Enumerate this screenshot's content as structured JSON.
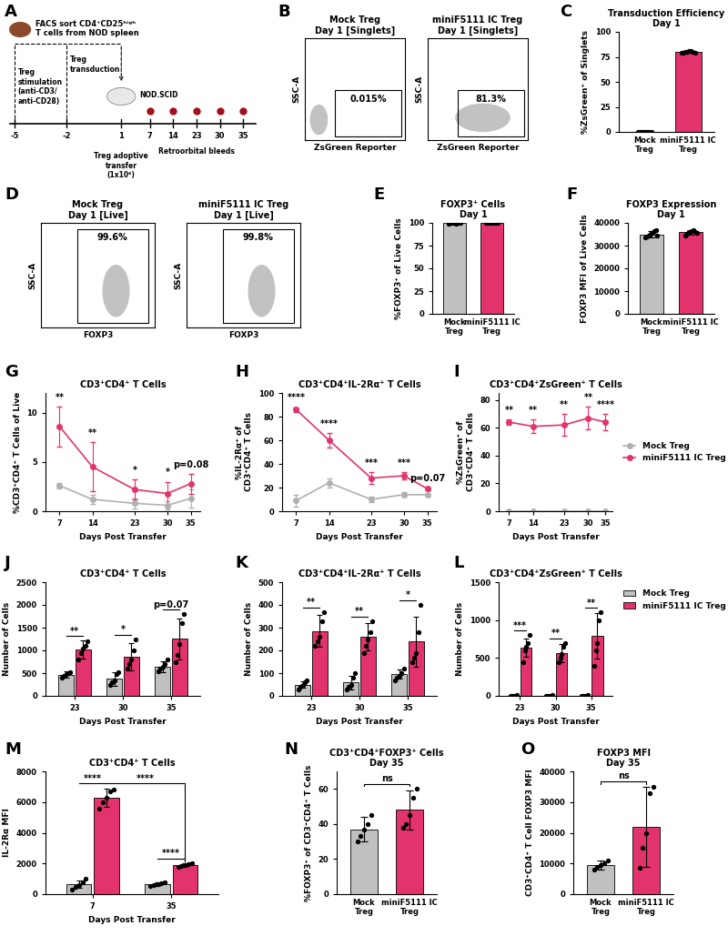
{
  "chart_data": [
    {
      "type": "diagram",
      "panel": "A",
      "source": "FACS sort CD4⁺CD25ʰⁱᵍʰ\nT cells from NOD spleen",
      "steps": [
        {
          "day": -5,
          "label": "Treg\nstimulation\n(anti-CD3/\nanti-CD28)"
        },
        {
          "day": -2,
          "label": "Treg\ntransduction"
        },
        {
          "day": 1,
          "label": "Treg adoptive\ntransfer\n(1x10⁶)"
        }
      ],
      "host": "NOD.SCID",
      "bleed_days": [
        7,
        14,
        23,
        30,
        35
      ],
      "bleed_label": "Retroorbital bleeds"
    },
    {
      "type": "flow",
      "panel": "B",
      "tick_labels": false,
      "xlabel": "ZsGreen Reporter",
      "ylabel": "SSC-A",
      "plots": [
        {
          "title": "Mock Treg",
          "subtitle": "Day 1 [Singlets]",
          "gate_label": "0.015%"
        },
        {
          "title": "miniF5111 IC Treg",
          "subtitle": "Day 1 [Singlets]",
          "gate_label": "81.3%"
        }
      ]
    },
    {
      "type": "bar",
      "panel": "C",
      "title": "Transduction Efficiency",
      "subtitle": "Day 1",
      "ylabel": "%ZsGreen⁺ of Singlets",
      "categories": [
        "Mock\nTreg",
        "miniF5111 IC\nTreg"
      ],
      "colors": [
        "#c0c0c0",
        "#e3336c"
      ],
      "values": [
        0,
        80
      ],
      "errors": [
        0,
        0.7
      ],
      "points": [
        [
          0,
          0,
          0,
          0,
          0,
          0,
          0,
          0,
          0
        ],
        [
          79,
          79.5,
          80,
          80,
          80.5,
          81,
          80,
          79.5
        ]
      ],
      "ylim": [
        0,
        100
      ],
      "yticks": [
        0,
        25,
        50,
        75,
        100
      ]
    },
    {
      "type": "flow",
      "panel": "D",
      "tick_labels": false,
      "xlabel": "FOXP3",
      "ylabel": "SSC-A",
      "plots": [
        {
          "title": "Mock Treg",
          "subtitle": "Day 1 [Live]",
          "gate_label": "99.6%"
        },
        {
          "title": "miniF5111 IC Treg",
          "subtitle": "Day 1 [Live]",
          "gate_label": "99.8%"
        }
      ]
    },
    {
      "type": "bar",
      "panel": "E",
      "title": "FOXP3⁺ Cells",
      "subtitle": "Day 1",
      "ylabel": "%FOXP3⁺ of Live Cells",
      "categories": [
        "Mock\nTreg",
        "miniF5111 IC\nTreg"
      ],
      "colors": [
        "#c0c0c0",
        "#e3336c"
      ],
      "values": [
        99.6,
        99.8
      ],
      "errors": [
        0.1,
        0.1
      ],
      "points": [
        [
          99.5,
          99.6,
          99.6,
          99.7,
          99.6,
          99.5,
          99.7,
          99.6,
          99.6
        ],
        [
          99.8,
          99.7,
          99.9,
          99.8,
          99.8,
          99.7,
          99.9,
          99.8
        ]
      ],
      "ylim": [
        0,
        100
      ],
      "yticks": [
        0,
        25,
        50,
        75,
        100
      ]
    },
    {
      "type": "bar",
      "panel": "F",
      "title": "FOXP3 Expression",
      "subtitle": "Day 1",
      "ylabel": "FOXP3 MFI of Live Cells",
      "categories": [
        "Mock\nTreg",
        "miniF5111 IC\nTreg"
      ],
      "colors": [
        "#c0c0c0",
        "#e3336c"
      ],
      "values": [
        35000,
        36000
      ],
      "errors": [
        1400,
        1000
      ],
      "points": [
        [
          33500,
          34000,
          34500,
          35000,
          35500,
          36000,
          36500,
          37000,
          34500
        ],
        [
          34500,
          35000,
          35500,
          36000,
          36500,
          37000,
          36000,
          35500
        ]
      ],
      "ylim": [
        0,
        40000
      ],
      "yticks": [
        0,
        10000,
        20000,
        30000,
        40000
      ]
    },
    {
      "type": "line",
      "panel": "G",
      "title": "CD3⁺CD4⁺ T Cells",
      "xlabel": "Days Post Transfer",
      "ylabel": "%CD3⁺CD4⁺ T Cells of Live",
      "x": [
        7,
        14,
        23,
        30,
        35
      ],
      "xlim": [
        4,
        37
      ],
      "xticks": [
        7,
        14,
        23,
        30,
        35
      ],
      "ylim": [
        0,
        12
      ],
      "yticks": [
        0,
        5,
        10
      ],
      "series": [
        {
          "name": "Mock Treg",
          "color": "#b0b0b0",
          "marker": "circle",
          "values": [
            2.6,
            1.2,
            0.8,
            0.6,
            1.3
          ],
          "errors": [
            0.3,
            0.5,
            0.5,
            0.4,
            0.9
          ]
        },
        {
          "name": "miniF5111 IC Treg",
          "color": "#e3336c",
          "marker": "circle",
          "values": [
            8.6,
            4.5,
            2.2,
            1.8,
            2.8
          ],
          "errors": [
            2.0,
            2.5,
            1.0,
            1.2,
            1.0
          ]
        }
      ],
      "annotations": [
        {
          "x": 7,
          "text": "**"
        },
        {
          "x": 14,
          "text": "**"
        },
        {
          "x": 23,
          "text": "*"
        },
        {
          "x": 30,
          "text": "*"
        },
        {
          "x": 35,
          "text": "p=0.08"
        }
      ]
    },
    {
      "type": "line",
      "panel": "H",
      "title": "CD3⁺CD4⁺IL-2Rα⁺ T Cells",
      "xlabel": "Days Post Transfer",
      "ylabel": "%IL-2Rα⁺ of\nCD3⁺CD4⁺ T Cells",
      "x": [
        7,
        14,
        23,
        30,
        35
      ],
      "xlim": [
        4,
        37
      ],
      "xticks": [
        7,
        14,
        23,
        30,
        35
      ],
      "ylim": [
        0,
        100
      ],
      "yticks": [
        0,
        20,
        40,
        60,
        80,
        100
      ],
      "series": [
        {
          "name": "Mock Treg",
          "color": "#b0b0b0",
          "marker": "circle",
          "values": [
            9,
            24,
            10,
            14,
            14
          ],
          "errors": [
            5,
            4,
            2,
            2,
            1
          ]
        },
        {
          "name": "miniF5111 IC Treg",
          "color": "#e3336c",
          "marker": "circle",
          "values": [
            86,
            60,
            28,
            30,
            19
          ],
          "errors": [
            2,
            6,
            5,
            3,
            1
          ]
        }
      ],
      "annotations": [
        {
          "x": 7,
          "text": "****"
        },
        {
          "x": 14,
          "text": "****"
        },
        {
          "x": 23,
          "text": "***"
        },
        {
          "x": 30,
          "text": "***"
        },
        {
          "x": 35,
          "text": "p=0.07"
        }
      ]
    },
    {
      "type": "line",
      "panel": "I",
      "title": "CD3⁺CD4⁺ZsGreen⁺ T Cells",
      "xlabel": "Days Post Transfer",
      "ylabel": "%ZsGreen⁺ of\nCD3⁺CD4⁺ T Cells",
      "x": [
        7,
        14,
        23,
        30,
        35
      ],
      "xlim": [
        4,
        37
      ],
      "xticks": [
        7,
        14,
        23,
        30,
        35
      ],
      "ylim": [
        0,
        85
      ],
      "yticks": [
        0,
        20,
        40,
        60,
        80
      ],
      "legend": "center left",
      "series": [
        {
          "name": "Mock Treg",
          "color": "#b0b0b0",
          "marker": "circle",
          "values": [
            0,
            0,
            0,
            0,
            0
          ],
          "errors": [
            0,
            0,
            0,
            0,
            0
          ]
        },
        {
          "name": "miniF5111 IC Treg",
          "color": "#e3336c",
          "marker": "circle",
          "values": [
            64,
            61,
            62,
            67,
            64
          ],
          "errors": [
            2,
            5,
            8,
            8,
            6
          ]
        }
      ],
      "annotations": [
        {
          "x": 7,
          "text": "**"
        },
        {
          "x": 14,
          "text": "**"
        },
        {
          "x": 23,
          "text": "**"
        },
        {
          "x": 30,
          "text": "**"
        },
        {
          "x": 35,
          "text": "****"
        }
      ]
    },
    {
      "type": "bar",
      "panel": "J",
      "title": "CD3⁺CD4⁺ T Cells",
      "xlabel": "Days Post Transfer",
      "ylabel": "Number of Cells",
      "categories": [
        "23",
        "30",
        "35"
      ],
      "ylim": [
        0,
        2500
      ],
      "yticks": [
        0,
        500,
        1000,
        1500,
        2000,
        2500
      ],
      "series": [
        {
          "name": "Mock Treg",
          "color": "#c0c0c0",
          "values": [
            470,
            380,
            650
          ],
          "errors": [
            70,
            150,
            120
          ],
          "points": [
            [
              400,
              450,
              480,
              500,
              520
            ],
            [
              250,
              300,
              350,
              480,
              520
            ],
            [
              550,
              600,
              650,
              700,
              800
            ]
          ]
        },
        {
          "name": "miniF5111 IC Treg",
          "color": "#e3336c",
          "values": [
            1020,
            870,
            1260
          ],
          "errors": [
            200,
            300,
            450
          ],
          "points": [
            [
              800,
              950,
              1050,
              1100,
              1200
            ],
            [
              600,
              700,
              800,
              1000,
              1250
            ],
            [
              750,
              900,
              1150,
              1600,
              1800
            ]
          ]
        }
      ],
      "annotations": [
        {
          "category": "23",
          "text": "**"
        },
        {
          "category": "30",
          "text": "*"
        },
        {
          "category": "35",
          "text": "p=0.07"
        }
      ]
    },
    {
      "type": "bar",
      "panel": "K",
      "title": "CD3⁺CD4⁺IL-2Rα⁺ T Cells",
      "xlabel": "Days Post Transfer",
      "ylabel": "Number of Cells",
      "categories": [
        "23",
        "30",
        "35"
      ],
      "ylim": [
        0,
        500
      ],
      "yticks": [
        0,
        100,
        200,
        300,
        400,
        500
      ],
      "series": [
        {
          "name": "Mock Treg",
          "color": "#c0c0c0",
          "values": [
            50,
            60,
            95
          ],
          "errors": [
            15,
            30,
            20
          ],
          "points": [
            [
              30,
              40,
              50,
              60,
              70
            ],
            [
              30,
              40,
              50,
              80,
              100
            ],
            [
              70,
              80,
              90,
              100,
              120
            ]
          ]
        },
        {
          "name": "miniF5111 IC Treg",
          "color": "#e3336c",
          "values": [
            285,
            260,
            240
          ],
          "errors": [
            70,
            60,
            110
          ],
          "points": [
            [
              220,
              240,
              260,
              330,
              370
            ],
            [
              190,
              220,
              250,
              280,
              330
            ],
            [
              150,
              170,
              190,
              280,
              400
            ]
          ]
        }
      ],
      "annotations": [
        {
          "category": "23",
          "text": "**"
        },
        {
          "category": "30",
          "text": "**"
        },
        {
          "category": "35",
          "text": "*"
        }
      ]
    },
    {
      "type": "bar",
      "panel": "L",
      "title": "CD3⁺CD4⁺ZsGreen⁺ T Cells",
      "xlabel": "Days Post Transfer",
      "ylabel": "Number of Cells",
      "categories": [
        "23",
        "30",
        "35"
      ],
      "ylim": [
        0,
        1500
      ],
      "yticks": [
        0,
        500,
        1000,
        1500
      ],
      "legend": "upper left",
      "series": [
        {
          "name": "Mock Treg",
          "color": "#c0c0c0",
          "values": [
            5,
            5,
            5
          ],
          "errors": [
            2,
            2,
            2
          ],
          "points": [
            [
              3,
              4,
              5,
              6,
              7
            ],
            [
              3,
              4,
              5,
              6,
              7
            ],
            [
              3,
              4,
              5,
              6,
              7
            ]
          ]
        },
        {
          "name": "miniF5111 IC Treg",
          "color": "#e3336c",
          "values": [
            640,
            570,
            790
          ],
          "errors": [
            120,
            120,
            300
          ],
          "points": [
            [
              450,
              600,
              650,
              700,
              800
            ],
            [
              450,
              500,
              550,
              650,
              700
            ],
            [
              400,
              600,
              700,
              1000,
              1100
            ]
          ]
        }
      ],
      "annotations": [
        {
          "category": "23",
          "text": "***"
        },
        {
          "category": "30",
          "text": "**"
        },
        {
          "category": "35",
          "text": "**"
        }
      ]
    },
    {
      "type": "bar",
      "panel": "M",
      "title": "CD3⁺CD4⁺ T Cells",
      "xlabel": "Days Post Transfer",
      "ylabel": "IL-2Rα MFI",
      "categories": [
        "7",
        "35"
      ],
      "ylim": [
        0,
        8000
      ],
      "yticks": [
        0,
        2000,
        4000,
        6000,
        8000
      ],
      "series": [
        {
          "name": "Mock Treg",
          "color": "#c0c0c0",
          "values": [
            650,
            650
          ],
          "errors": [
            250,
            100
          ],
          "points": [
            [
              300,
              450,
              600,
              800,
              1000
            ],
            [
              550,
              600,
              650,
              700,
              750
            ]
          ]
        },
        {
          "name": "miniF5111 IC Treg",
          "color": "#e3336c",
          "values": [
            6300,
            1900
          ],
          "errors": [
            600,
            100
          ],
          "points": [
            [
              5600,
              6000,
              6300,
              6700,
              6800
            ],
            [
              1800,
              1850,
              1900,
              1950,
              2000
            ]
          ]
        }
      ],
      "annotations": [
        {
          "category": "7",
          "text": "****"
        },
        {
          "category": "35",
          "text": "****"
        }
      ],
      "bracket": {
        "from": "7",
        "to": "35",
        "series": "miniF5111 IC Treg",
        "text": "****"
      }
    },
    {
      "type": "bar",
      "panel": "N",
      "title": "CD3⁺CD4⁺FOXP3⁺ Cells",
      "subtitle": "Day 35",
      "ylabel": "%FOXP3⁺ of CD3⁺CD4⁺ T Cells",
      "categories": [
        "Mock\nTreg",
        "miniF5111 IC\nTreg"
      ],
      "colors": [
        "#c0c0c0",
        "#e3336c"
      ],
      "values": [
        37,
        48
      ],
      "errors": [
        7,
        11
      ],
      "points": [
        [
          30,
          33,
          37,
          40,
          45
        ],
        [
          38,
          40,
          45,
          55,
          60
        ]
      ],
      "ylim": [
        0,
        70
      ],
      "yticks": [
        0,
        20,
        40,
        60
      ],
      "brackets": [
        {
          "text": "ns"
        }
      ]
    },
    {
      "type": "bar",
      "panel": "O",
      "title": "FOXP3 MFI",
      "subtitle": "Day 35",
      "ylabel": "CD3⁺CD4⁺ T Cell FOXP3 MFI",
      "categories": [
        "Mock\nTreg",
        "miniF5111 IC\nTreg"
      ],
      "colors": [
        "#c0c0c0",
        "#e3336c"
      ],
      "values": [
        9500,
        22000
      ],
      "errors": [
        1500,
        13000
      ],
      "points": [
        [
          8000,
          9000,
          9500,
          10000,
          11000
        ],
        [
          8500,
          15000,
          20000,
          33000,
          35000
        ]
      ],
      "ylim": [
        0,
        40000
      ],
      "yticks": [
        0,
        10000,
        20000,
        30000,
        40000
      ],
      "brackets": [
        {
          "text": "ns"
        }
      ]
    }
  ]
}
